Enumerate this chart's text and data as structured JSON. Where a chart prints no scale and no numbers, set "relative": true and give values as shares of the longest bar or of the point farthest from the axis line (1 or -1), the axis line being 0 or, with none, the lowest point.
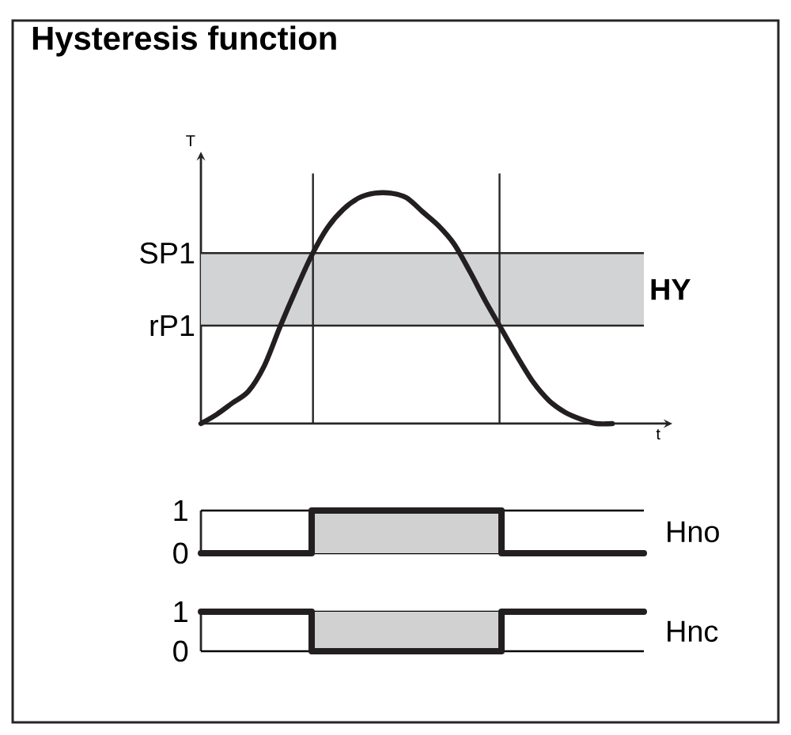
{
  "chart_data": [
    {
      "type": "line",
      "title": "Hysteresis function",
      "xlabel": "t",
      "ylabel": "T",
      "relative": true,
      "marker": "none",
      "categories": [
        null,
        null,
        null,
        null,
        null,
        null,
        null,
        null,
        null,
        null,
        null,
        null,
        null,
        null,
        null,
        null,
        null,
        null,
        null,
        null,
        null,
        null,
        null,
        null,
        null,
        null,
        null,
        null,
        null
      ],
      "series": [
        {
          "color": "#231f20",
          "values": [
            0,
            0.04,
            0.09,
            0.14,
            0.25,
            0.42,
            0.58,
            0.73,
            0.85,
            0.93,
            0.98,
            1,
            1,
            0.98,
            0.92,
            0.86,
            0.78,
            0.66,
            0.53,
            0.41,
            0.29,
            0.18,
            0.1,
            0.05,
            0.02,
            0,
            0,
            null,
            null
          ]
        }
      ],
      "bands": [
        {
          "axis": "y",
          "from": 0.425,
          "to": 0.74,
          "label": "HY",
          "color": "#d1d3d4"
        }
      ],
      "ref_lines": [
        {
          "axis": "y",
          "value": 0.74,
          "label": "SP1"
        },
        {
          "axis": "y",
          "value": 0.425,
          "label": "rP1"
        }
      ]
    },
    {
      "type": "step",
      "ylim": [
        0,
        1
      ],
      "yticks": [
        0,
        1
      ],
      "categories": [
        null,
        null,
        null,
        null,
        null,
        null,
        null,
        null,
        null,
        null,
        null,
        null,
        null,
        null,
        null,
        null,
        null,
        null,
        null,
        null,
        null,
        null,
        null,
        null,
        null,
        null,
        null,
        null,
        null
      ],
      "series": [
        {
          "name": "Hno",
          "color": "#231f20",
          "values": [
            0,
            0,
            0,
            0,
            0,
            0,
            0,
            1,
            1,
            1,
            1,
            1,
            1,
            1,
            1,
            1,
            1,
            1,
            1,
            0,
            0,
            0,
            0,
            0,
            0,
            0,
            0,
            0,
            0
          ]
        }
      ]
    },
    {
      "type": "step",
      "ylim": [
        0,
        1
      ],
      "yticks": [
        0,
        1
      ],
      "categories": [
        null,
        null,
        null,
        null,
        null,
        null,
        null,
        null,
        null,
        null,
        null,
        null,
        null,
        null,
        null,
        null,
        null,
        null,
        null,
        null,
        null,
        null,
        null,
        null,
        null,
        null,
        null,
        null,
        null
      ],
      "series": [
        {
          "name": "Hnc",
          "color": "#231f20",
          "values": [
            1,
            1,
            1,
            1,
            1,
            1,
            1,
            0,
            0,
            0,
            0,
            0,
            0,
            0,
            0,
            0,
            0,
            0,
            0,
            1,
            1,
            1,
            1,
            1,
            1,
            1,
            1,
            1,
            1
          ]
        }
      ]
    }
  ]
}
